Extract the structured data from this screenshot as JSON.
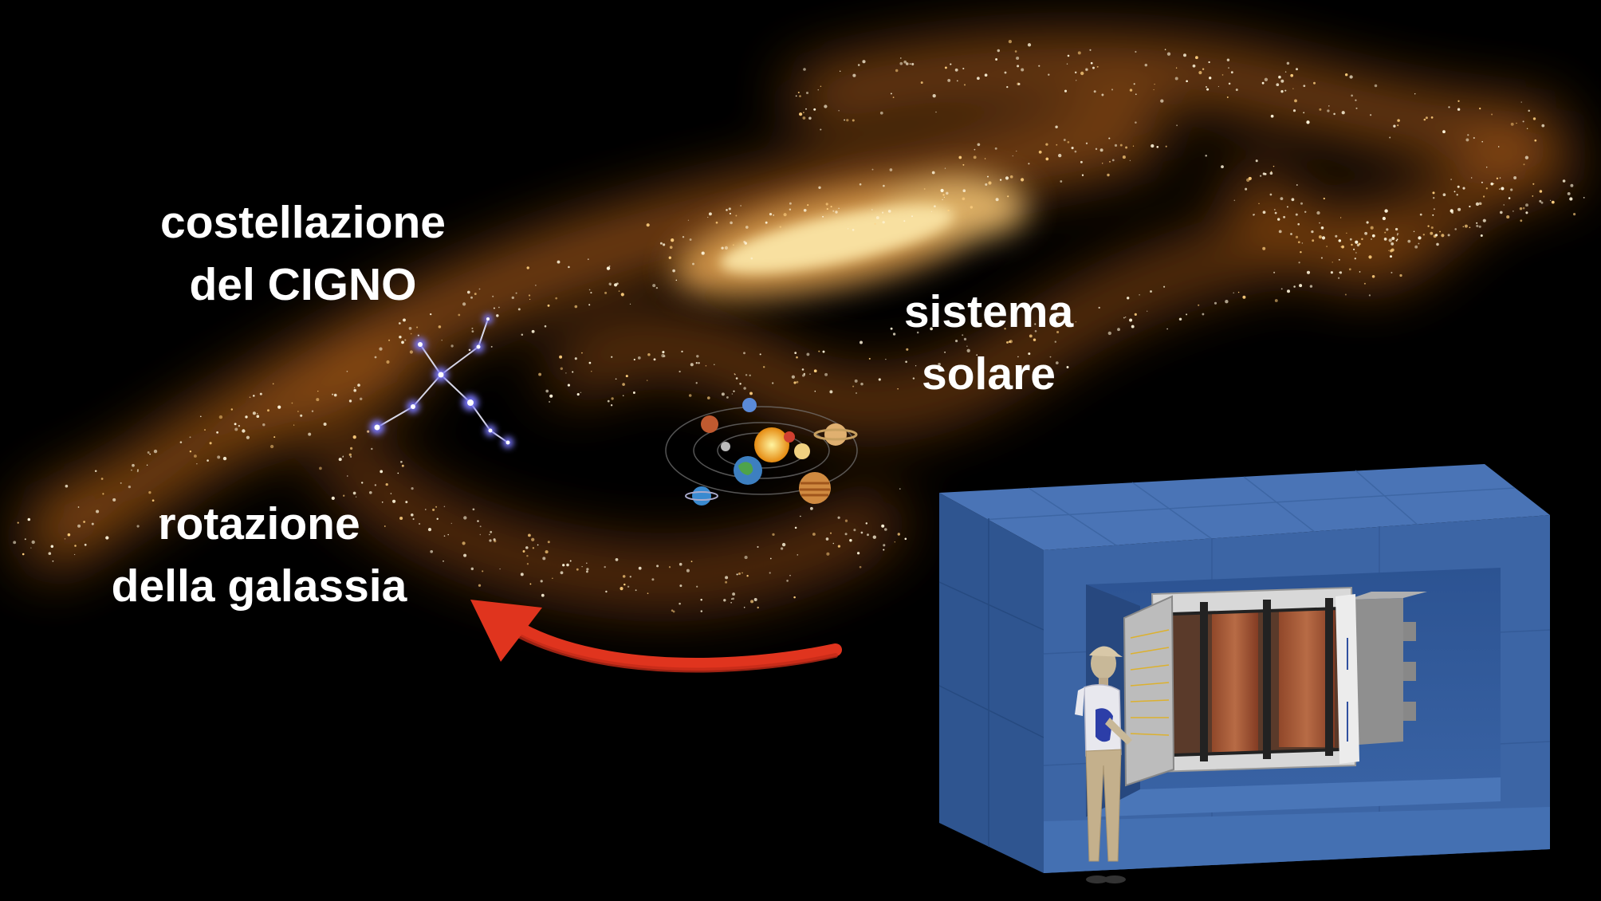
{
  "labels": {
    "cygnus": {
      "line1": "costellazione",
      "line2": "del CIGNO"
    },
    "solar_system": {
      "line1": "sistema",
      "line2": "solare"
    },
    "rotation": {
      "line1": "rotazione",
      "line2": "della galassia"
    }
  },
  "colors": {
    "background": "#000000",
    "galaxy_glow": "#c8741e",
    "galaxy_core": "#f5d58a",
    "constellation_star": "#6f6cff",
    "arrow": "#e0341e",
    "shield_front": "#3c65a5",
    "shield_top": "#4a74b6",
    "shield_side": "#2f5590",
    "label_text": "#ffffff"
  },
  "icons": {
    "constellation": "cygnus-constellation-icon",
    "solar_system": "solar-system-icon",
    "arrow": "curved-arrow-icon",
    "detector": "detector-shielding-icon",
    "person": "person-figure-icon"
  }
}
